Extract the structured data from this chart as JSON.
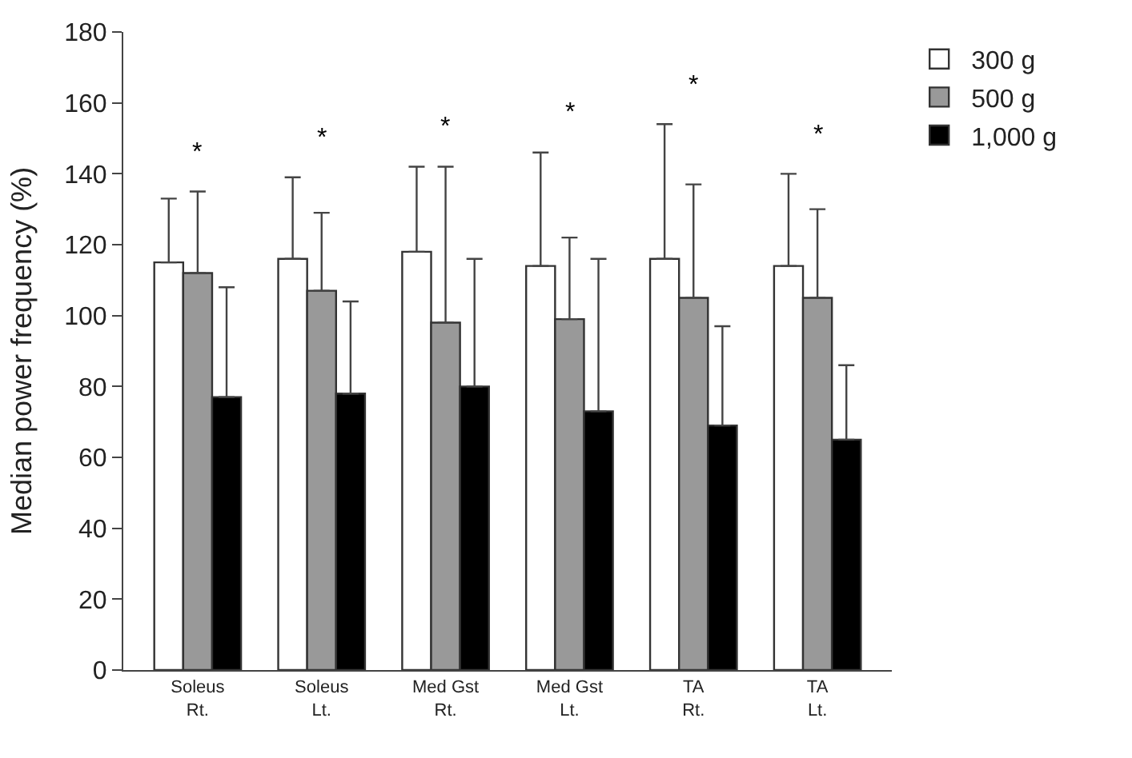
{
  "chart_data": {
    "type": "bar",
    "ylabel": "Median power frequency (%)",
    "categories": [
      "Soleus\nRt.",
      "Soleus\nLt.",
      "Med Gst\nRt.",
      "Med Gst\nLt.",
      "TA\nRt.",
      "TA\nLt."
    ],
    "series": [
      {
        "name": "300 g",
        "color": "#ffffff",
        "values": [
          115,
          116,
          118,
          114,
          116,
          114
        ],
        "errors": [
          [
            115,
            133
          ],
          [
            116,
            139
          ],
          [
            118,
            142
          ],
          [
            114,
            146
          ],
          [
            116,
            154
          ],
          [
            114,
            140
          ]
        ]
      },
      {
        "name": "500 g",
        "color": "#999999",
        "values": [
          112,
          107,
          98,
          99,
          105,
          105
        ],
        "errors": [
          [
            112,
            135
          ],
          [
            107,
            129
          ],
          [
            98,
            142
          ],
          [
            99,
            122
          ],
          [
            105,
            137
          ],
          [
            105,
            130
          ]
        ]
      },
      {
        "name": "1,000 g",
        "color": "#000000",
        "values": [
          77,
          78,
          80,
          73,
          69,
          65
        ],
        "errors": [
          [
            77,
            108
          ],
          [
            78,
            104
          ],
          [
            80,
            116
          ],
          [
            73,
            116
          ],
          [
            69,
            97
          ],
          [
            65,
            86
          ]
        ]
      }
    ],
    "ylim": [
      0,
      180
    ],
    "yticks": [
      0,
      20,
      40,
      60,
      80,
      100,
      120,
      140,
      160,
      180
    ],
    "annotations": [
      "*",
      "*",
      "*",
      "*",
      "*",
      "*"
    ],
    "legend": "top right"
  }
}
